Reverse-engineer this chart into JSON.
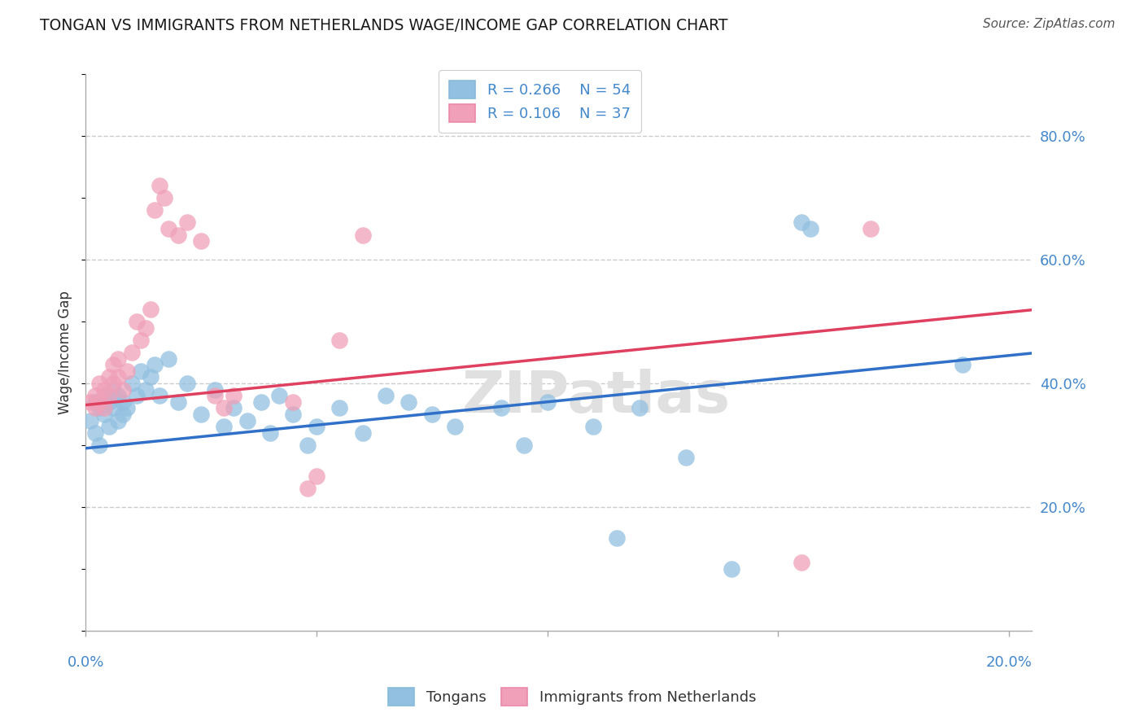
{
  "title": "TONGAN VS IMMIGRANTS FROM NETHERLANDS WAGE/INCOME GAP CORRELATION CHART",
  "source": "Source: ZipAtlas.com",
  "ylabel": "Wage/Income Gap",
  "right_yticks": [
    "80.0%",
    "60.0%",
    "40.0%",
    "20.0%"
  ],
  "right_ytick_vals": [
    0.8,
    0.6,
    0.4,
    0.2
  ],
  "legend_blue_r": "R = 0.266",
  "legend_blue_n": "N = 54",
  "legend_pink_r": "R = 0.106",
  "legend_pink_n": "N = 37",
  "blue_color": "#92c0e0",
  "pink_color": "#f0a0b8",
  "blue_line_color": "#3070c8",
  "pink_line_color": "#e04060",
  "title_color": "#1a1a1a",
  "axis_label_color": "#4488cc",
  "grid_color": "#cccccc",
  "background_color": "#ffffff",
  "watermark": "ZIPatlas",
  "blue_scatter_x": [
    0.001,
    0.002,
    0.002,
    0.003,
    0.003,
    0.004,
    0.004,
    0.005,
    0.005,
    0.006,
    0.006,
    0.007,
    0.007,
    0.008,
    0.008,
    0.009,
    0.01,
    0.011,
    0.012,
    0.013,
    0.014,
    0.015,
    0.016,
    0.018,
    0.02,
    0.022,
    0.025,
    0.028,
    0.03,
    0.032,
    0.035,
    0.038,
    0.04,
    0.042,
    0.045,
    0.048,
    0.05,
    0.055,
    0.06,
    0.065,
    0.07,
    0.075,
    0.08,
    0.09,
    0.095,
    0.1,
    0.11,
    0.115,
    0.12,
    0.13,
    0.14,
    0.155,
    0.157,
    0.19
  ],
  "blue_scatter_y": [
    0.34,
    0.37,
    0.32,
    0.36,
    0.3,
    0.38,
    0.35,
    0.37,
    0.33,
    0.39,
    0.36,
    0.38,
    0.34,
    0.37,
    0.35,
    0.36,
    0.4,
    0.38,
    0.42,
    0.39,
    0.41,
    0.43,
    0.38,
    0.44,
    0.37,
    0.4,
    0.35,
    0.39,
    0.33,
    0.36,
    0.34,
    0.37,
    0.32,
    0.38,
    0.35,
    0.3,
    0.33,
    0.36,
    0.32,
    0.38,
    0.37,
    0.35,
    0.33,
    0.36,
    0.3,
    0.37,
    0.33,
    0.15,
    0.36,
    0.28,
    0.1,
    0.66,
    0.65,
    0.43
  ],
  "pink_scatter_x": [
    0.001,
    0.002,
    0.002,
    0.003,
    0.003,
    0.004,
    0.004,
    0.005,
    0.005,
    0.006,
    0.006,
    0.007,
    0.007,
    0.008,
    0.009,
    0.01,
    0.011,
    0.012,
    0.013,
    0.014,
    0.015,
    0.016,
    0.017,
    0.018,
    0.02,
    0.022,
    0.025,
    0.028,
    0.03,
    0.032,
    0.045,
    0.048,
    0.05,
    0.055,
    0.06,
    0.155,
    0.17
  ],
  "pink_scatter_y": [
    0.37,
    0.38,
    0.36,
    0.4,
    0.37,
    0.39,
    0.36,
    0.41,
    0.38,
    0.43,
    0.4,
    0.44,
    0.41,
    0.39,
    0.42,
    0.45,
    0.5,
    0.47,
    0.49,
    0.52,
    0.68,
    0.72,
    0.7,
    0.65,
    0.64,
    0.66,
    0.63,
    0.38,
    0.36,
    0.38,
    0.37,
    0.23,
    0.25,
    0.47,
    0.64,
    0.11,
    0.65
  ],
  "xlim": [
    0.0,
    0.205
  ],
  "ylim": [
    0.0,
    0.9
  ],
  "xtick_positions": [
    0.0,
    0.05,
    0.1,
    0.15,
    0.2
  ]
}
